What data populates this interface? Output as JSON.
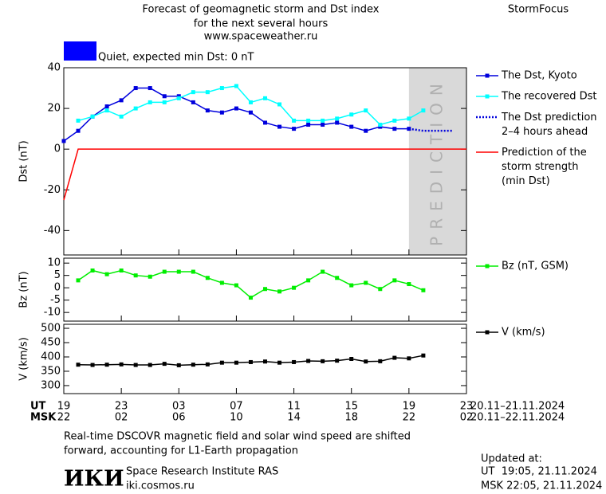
{
  "header": {
    "title_lines": [
      "Forecast of geomagnetic storm and Dst index",
      "for the next several hours",
      "www.spaceweather.ru"
    ],
    "brand": "StormFocus",
    "status": "Quiet, expected min Dst: 0 nT",
    "status_color": "#0000ff"
  },
  "chart_data": [
    {
      "type": "line",
      "ylabel": "Dst (nT)",
      "xlim": [
        0,
        28
      ],
      "ylim": [
        -52,
        40
      ],
      "yticks": [
        40,
        20,
        0,
        -20,
        -40
      ],
      "x": [
        0,
        1,
        2,
        3,
        4,
        5,
        6,
        7,
        8,
        9,
        10,
        11,
        12,
        13,
        14,
        15,
        16,
        17,
        18,
        19,
        20,
        21,
        22,
        23,
        24,
        25,
        26,
        27,
        28
      ],
      "prediction_zone": {
        "from": 24,
        "to": 28,
        "label": "PREDICTION",
        "color": "#d9d9d9"
      },
      "series": [
        {
          "name": "The Dst, Kyoto",
          "color": "#0000dd",
          "markers": true,
          "dash": false,
          "values": [
            4,
            9,
            16,
            21,
            24,
            30,
            30,
            26,
            26,
            23,
            19,
            18,
            20,
            18,
            13,
            11,
            10,
            12,
            12,
            13,
            11,
            9,
            11,
            10,
            10,
            null,
            null,
            null,
            null
          ]
        },
        {
          "name": "The recovered Dst",
          "color": "#00ffff",
          "markers": true,
          "dash": false,
          "values": [
            null,
            14,
            16,
            19,
            16,
            20,
            23,
            23,
            25,
            28,
            28,
            30,
            31,
            23,
            25,
            22,
            14,
            14,
            14,
            15,
            17,
            19,
            12,
            14,
            15,
            19,
            null,
            null,
            null
          ]
        },
        {
          "name": "The Dst prediction\n2–4 hours ahead",
          "color": "#0000dd",
          "markers": false,
          "dash": true,
          "values": [
            null,
            null,
            null,
            null,
            null,
            null,
            null,
            null,
            null,
            null,
            null,
            null,
            null,
            null,
            null,
            null,
            null,
            null,
            null,
            null,
            null,
            null,
            null,
            null,
            10,
            9,
            9,
            9,
            null
          ]
        },
        {
          "name": "Prediction of the\nstorm strength\n(min Dst)",
          "color": "#ff0000",
          "markers": false,
          "dash": false,
          "values": [
            -25,
            0,
            0,
            0,
            0,
            0,
            0,
            0,
            0,
            0,
            0,
            0,
            0,
            0,
            0,
            0,
            0,
            0,
            0,
            0,
            0,
            0,
            0,
            0,
            0,
            0,
            0,
            0,
            0
          ]
        }
      ]
    },
    {
      "type": "line",
      "ylabel": "Bz (nT)",
      "xlim": [
        0,
        28
      ],
      "ylim": [
        -13.5,
        12
      ],
      "yticks": [
        10,
        5,
        0,
        -5,
        -10
      ],
      "x": [
        0,
        1,
        2,
        3,
        4,
        5,
        6,
        7,
        8,
        9,
        10,
        11,
        12,
        13,
        14,
        15,
        16,
        17,
        18,
        19,
        20,
        21,
        22,
        23,
        24,
        25,
        26,
        27,
        28
      ],
      "series": [
        {
          "name": "Bz (nT, GSM)",
          "color": "#00ee00",
          "markers": true,
          "dash": false,
          "values": [
            null,
            3,
            7,
            5.5,
            7,
            5,
            4.5,
            6.5,
            6.5,
            6.5,
            4,
            2,
            1,
            -4,
            -0.5,
            -1.5,
            0,
            3,
            6.5,
            4,
            1,
            2,
            -0.5,
            3,
            1.5,
            -1,
            null,
            null,
            null
          ]
        }
      ]
    },
    {
      "type": "line",
      "ylabel": "V (km/s)",
      "xlim": [
        0,
        28
      ],
      "ylim": [
        272,
        514
      ],
      "yticks": [
        500,
        450,
        400,
        350,
        300
      ],
      "x": [
        0,
        1,
        2,
        3,
        4,
        5,
        6,
        7,
        8,
        9,
        10,
        11,
        12,
        13,
        14,
        15,
        16,
        17,
        18,
        19,
        20,
        21,
        22,
        23,
        24,
        25,
        26,
        27,
        28
      ],
      "series": [
        {
          "name": "V (km/s)",
          "color": "#000000",
          "markers": true,
          "dash": false,
          "values": [
            null,
            373,
            372,
            373,
            374,
            372,
            372,
            376,
            371,
            373,
            374,
            380,
            380,
            382,
            384,
            380,
            382,
            386,
            385,
            387,
            393,
            384,
            385,
            397,
            395,
            405,
            null,
            null,
            null
          ]
        }
      ],
      "xticks": [
        {
          "value": 0,
          "label": "19"
        },
        {
          "value": 4,
          "label": "23"
        },
        {
          "value": 8,
          "label": "03"
        },
        {
          "value": 12,
          "label": "07"
        },
        {
          "value": 16,
          "label": "11"
        },
        {
          "value": 20,
          "label": "15"
        },
        {
          "value": 24,
          "label": "19"
        },
        {
          "value": 28,
          "label": "23"
        }
      ],
      "xticks_msk": [
        {
          "value": 0,
          "label": "22"
        },
        {
          "value": 4,
          "label": "02"
        },
        {
          "value": 8,
          "label": "06"
        },
        {
          "value": 12,
          "label": "10"
        },
        {
          "value": 16,
          "label": "14"
        },
        {
          "value": 20,
          "label": "18"
        },
        {
          "value": 24,
          "label": "22"
        },
        {
          "value": 28,
          "label": "02"
        }
      ],
      "row_labels": [
        "UT",
        "MSK"
      ],
      "date_ranges": [
        "20.11–21.11.2024",
        "20.11–22.11.2024"
      ]
    }
  ],
  "footer": {
    "note_lines": [
      "Real-time DSCOVR magnetic field and solar wind speed are shifted",
      "forward, accounting for L1-Earth propagation"
    ],
    "logo": "ИКИ",
    "institute": "Space Research Institute RAS",
    "url": "iki.cosmos.ru",
    "updated_title": "Updated at:",
    "updated_lines": [
      "UT  19:05, 21.11.2024",
      "MSK 22:05, 21.11.2024"
    ]
  }
}
